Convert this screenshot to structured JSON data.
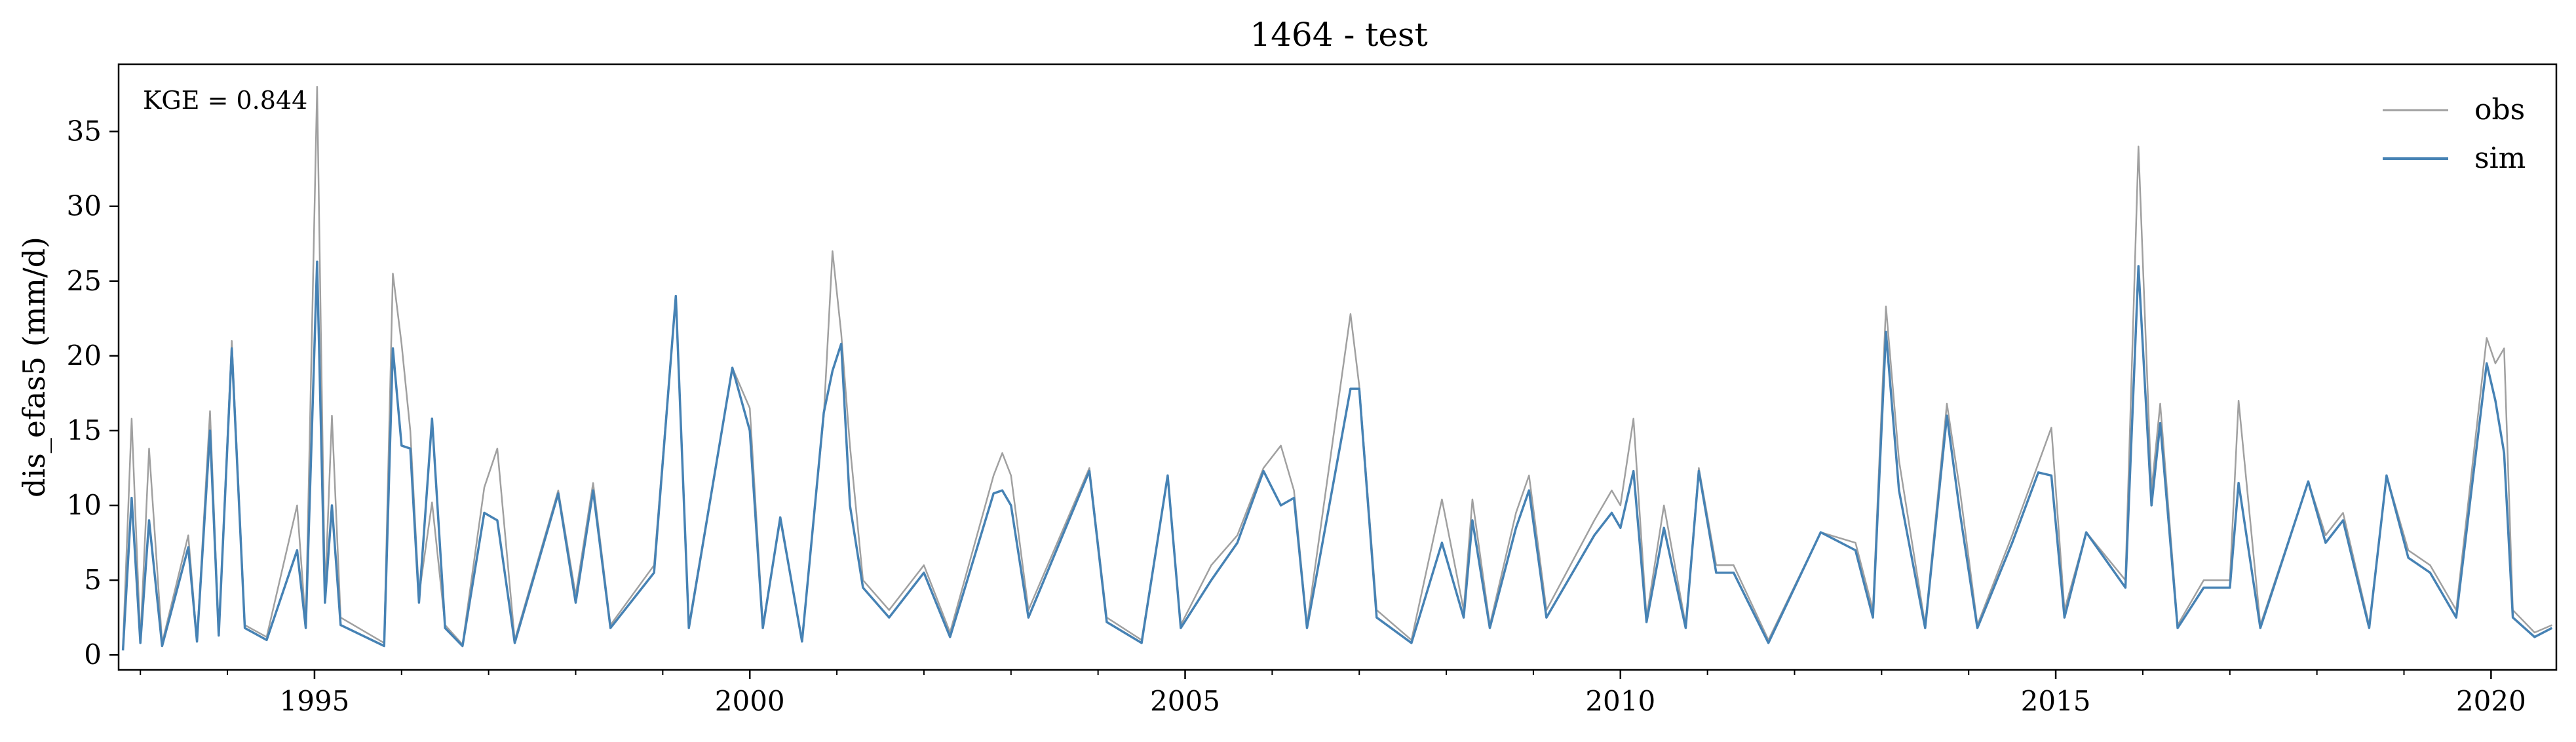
{
  "chart_data": {
    "type": "line",
    "title": "1464 - test",
    "ylabel": "dis_efas5 (mm/d)",
    "xlabel": "",
    "xlim": [
      1992.75,
      2020.75
    ],
    "ylim": [
      -1,
      39.5
    ],
    "xticks": [
      {
        "value": 1995,
        "label": "1995"
      },
      {
        "value": 2000,
        "label": "2000"
      },
      {
        "value": 2005,
        "label": "2005"
      },
      {
        "value": 2010,
        "label": "2010"
      },
      {
        "value": 2015,
        "label": "2015"
      },
      {
        "value": 2020,
        "label": "2020"
      }
    ],
    "yticks": [
      {
        "value": 0,
        "label": "0"
      },
      {
        "value": 5,
        "label": "5"
      },
      {
        "value": 10,
        "label": "10"
      },
      {
        "value": 15,
        "label": "15"
      },
      {
        "value": 20,
        "label": "20"
      },
      {
        "value": 25,
        "label": "25"
      },
      {
        "value": 30,
        "label": "30"
      },
      {
        "value": 35,
        "label": "35"
      }
    ],
    "grid": false,
    "legend": "upper right",
    "annotation": "KGE = 0.844",
    "series": [
      {
        "name": "obs",
        "color": "#a0a0a0",
        "points": [
          [
            1992.8,
            0.5
          ],
          [
            1992.9,
            15.8
          ],
          [
            1993.0,
            1.0
          ],
          [
            1993.1,
            13.8
          ],
          [
            1993.25,
            0.8
          ],
          [
            1993.55,
            8.0
          ],
          [
            1993.65,
            1.0
          ],
          [
            1993.8,
            16.3
          ],
          [
            1993.9,
            1.5
          ],
          [
            1994.05,
            21.0
          ],
          [
            1994.2,
            2.0
          ],
          [
            1994.45,
            1.2
          ],
          [
            1994.8,
            10.0
          ],
          [
            1994.9,
            2.0
          ],
          [
            1995.03,
            38.0
          ],
          [
            1995.12,
            4.0
          ],
          [
            1995.2,
            16.0
          ],
          [
            1995.3,
            2.5
          ],
          [
            1995.8,
            0.8
          ],
          [
            1995.9,
            25.5
          ],
          [
            1996.0,
            20.8
          ],
          [
            1996.1,
            15.0
          ],
          [
            1996.2,
            4.0
          ],
          [
            1996.35,
            10.2
          ],
          [
            1996.5,
            2.0
          ],
          [
            1996.7,
            0.7
          ],
          [
            1996.95,
            11.2
          ],
          [
            1997.1,
            13.8
          ],
          [
            1997.3,
            1.0
          ],
          [
            1997.8,
            11.0
          ],
          [
            1998.0,
            4.0
          ],
          [
            1998.2,
            11.5
          ],
          [
            1998.4,
            2.0
          ],
          [
            1998.9,
            6.0
          ],
          [
            1999.15,
            24.0
          ],
          [
            1999.3,
            2.0
          ],
          [
            1999.8,
            19.2
          ],
          [
            2000.0,
            16.5
          ],
          [
            2000.15,
            2.0
          ],
          [
            2000.35,
            9.0
          ],
          [
            2000.6,
            1.0
          ],
          [
            2000.85,
            16.0
          ],
          [
            2000.95,
            27.0
          ],
          [
            2001.05,
            21.5
          ],
          [
            2001.15,
            14.0
          ],
          [
            2001.3,
            5.0
          ],
          [
            2001.6,
            3.0
          ],
          [
            2002.0,
            6.0
          ],
          [
            2002.3,
            1.5
          ],
          [
            2002.8,
            12.0
          ],
          [
            2002.9,
            13.5
          ],
          [
            2003.0,
            12.0
          ],
          [
            2003.2,
            3.0
          ],
          [
            2003.9,
            12.5
          ],
          [
            2004.1,
            2.5
          ],
          [
            2004.5,
            1.0
          ],
          [
            2004.8,
            12.0
          ],
          [
            2004.95,
            2.0
          ],
          [
            2005.3,
            6.0
          ],
          [
            2005.6,
            8.0
          ],
          [
            2005.9,
            12.5
          ],
          [
            2006.1,
            14.0
          ],
          [
            2006.25,
            11.0
          ],
          [
            2006.4,
            2.0
          ],
          [
            2006.9,
            22.8
          ],
          [
            2007.0,
            18.0
          ],
          [
            2007.2,
            3.0
          ],
          [
            2007.6,
            1.0
          ],
          [
            2007.95,
            10.4
          ],
          [
            2008.2,
            3.0
          ],
          [
            2008.3,
            10.4
          ],
          [
            2008.5,
            2.0
          ],
          [
            2008.8,
            9.5
          ],
          [
            2008.95,
            12.0
          ],
          [
            2009.15,
            3.0
          ],
          [
            2009.7,
            9.0
          ],
          [
            2009.9,
            11.0
          ],
          [
            2010.0,
            10.0
          ],
          [
            2010.15,
            15.8
          ],
          [
            2010.3,
            2.5
          ],
          [
            2010.5,
            10.0
          ],
          [
            2010.75,
            2.0
          ],
          [
            2010.9,
            12.5
          ],
          [
            2011.1,
            6.0
          ],
          [
            2011.3,
            6.0
          ],
          [
            2011.7,
            1.0
          ],
          [
            2012.3,
            8.2
          ],
          [
            2012.7,
            7.5
          ],
          [
            2012.9,
            3.0
          ],
          [
            2013.05,
            23.3
          ],
          [
            2013.2,
            13.0
          ],
          [
            2013.5,
            2.0
          ],
          [
            2013.75,
            16.8
          ],
          [
            2013.9,
            11.0
          ],
          [
            2014.1,
            2.0
          ],
          [
            2014.5,
            8.0
          ],
          [
            2014.8,
            12.8
          ],
          [
            2014.95,
            15.2
          ],
          [
            2015.1,
            3.0
          ],
          [
            2015.35,
            8.2
          ],
          [
            2015.8,
            5.0
          ],
          [
            2015.95,
            34.0
          ],
          [
            2016.1,
            11.0
          ],
          [
            2016.2,
            16.8
          ],
          [
            2016.4,
            2.0
          ],
          [
            2016.7,
            5.0
          ],
          [
            2017.0,
            5.0
          ],
          [
            2017.1,
            17.0
          ],
          [
            2017.35,
            2.0
          ],
          [
            2017.9,
            11.6
          ],
          [
            2018.1,
            8.0
          ],
          [
            2018.3,
            9.5
          ],
          [
            2018.6,
            2.0
          ],
          [
            2018.8,
            12.0
          ],
          [
            2019.05,
            7.0
          ],
          [
            2019.3,
            6.0
          ],
          [
            2019.6,
            3.0
          ],
          [
            2019.95,
            21.2
          ],
          [
            2020.05,
            19.5
          ],
          [
            2020.15,
            20.5
          ],
          [
            2020.25,
            3.0
          ],
          [
            2020.5,
            1.5
          ],
          [
            2020.7,
            2.0
          ]
        ]
      },
      {
        "name": "sim",
        "color": "#4682b4",
        "points": [
          [
            1992.8,
            0.3
          ],
          [
            1992.9,
            10.5
          ],
          [
            1993.0,
            0.8
          ],
          [
            1993.1,
            9.0
          ],
          [
            1993.25,
            0.6
          ],
          [
            1993.55,
            7.2
          ],
          [
            1993.65,
            0.9
          ],
          [
            1993.8,
            15.0
          ],
          [
            1993.9,
            1.3
          ],
          [
            1994.05,
            20.5
          ],
          [
            1994.2,
            1.8
          ],
          [
            1994.45,
            1.0
          ],
          [
            1994.8,
            7.0
          ],
          [
            1994.9,
            1.8
          ],
          [
            1995.03,
            26.3
          ],
          [
            1995.12,
            3.5
          ],
          [
            1995.2,
            10.0
          ],
          [
            1995.3,
            2.0
          ],
          [
            1995.8,
            0.6
          ],
          [
            1995.9,
            20.5
          ],
          [
            1996.0,
            14.0
          ],
          [
            1996.1,
            13.8
          ],
          [
            1996.2,
            3.5
          ],
          [
            1996.35,
            15.8
          ],
          [
            1996.5,
            1.8
          ],
          [
            1996.7,
            0.6
          ],
          [
            1996.95,
            9.5
          ],
          [
            1997.1,
            9.0
          ],
          [
            1997.3,
            0.8
          ],
          [
            1997.8,
            10.8
          ],
          [
            1998.0,
            3.5
          ],
          [
            1998.2,
            11.0
          ],
          [
            1998.4,
            1.8
          ],
          [
            1998.9,
            5.5
          ],
          [
            1999.15,
            24.0
          ],
          [
            1999.3,
            1.8
          ],
          [
            1999.8,
            19.2
          ],
          [
            2000.0,
            15.0
          ],
          [
            2000.15,
            1.8
          ],
          [
            2000.35,
            9.2
          ],
          [
            2000.6,
            0.9
          ],
          [
            2000.85,
            16.2
          ],
          [
            2000.95,
            19.0
          ],
          [
            2001.05,
            20.8
          ],
          [
            2001.15,
            10.0
          ],
          [
            2001.3,
            4.5
          ],
          [
            2001.6,
            2.5
          ],
          [
            2002.0,
            5.5
          ],
          [
            2002.3,
            1.2
          ],
          [
            2002.8,
            10.8
          ],
          [
            2002.9,
            11.0
          ],
          [
            2003.0,
            10.0
          ],
          [
            2003.2,
            2.5
          ],
          [
            2003.9,
            12.3
          ],
          [
            2004.1,
            2.2
          ],
          [
            2004.5,
            0.8
          ],
          [
            2004.8,
            12.0
          ],
          [
            2004.95,
            1.8
          ],
          [
            2005.3,
            5.0
          ],
          [
            2005.6,
            7.5
          ],
          [
            2005.9,
            12.3
          ],
          [
            2006.1,
            10.0
          ],
          [
            2006.25,
            10.5
          ],
          [
            2006.4,
            1.8
          ],
          [
            2006.9,
            17.8
          ],
          [
            2007.0,
            17.8
          ],
          [
            2007.2,
            2.5
          ],
          [
            2007.6,
            0.8
          ],
          [
            2007.95,
            7.5
          ],
          [
            2008.2,
            2.5
          ],
          [
            2008.3,
            9.0
          ],
          [
            2008.5,
            1.8
          ],
          [
            2008.8,
            8.5
          ],
          [
            2008.95,
            11.0
          ],
          [
            2009.15,
            2.5
          ],
          [
            2009.7,
            8.0
          ],
          [
            2009.9,
            9.5
          ],
          [
            2010.0,
            8.5
          ],
          [
            2010.15,
            12.3
          ],
          [
            2010.3,
            2.2
          ],
          [
            2010.5,
            8.5
          ],
          [
            2010.75,
            1.8
          ],
          [
            2010.9,
            12.3
          ],
          [
            2011.1,
            5.5
          ],
          [
            2011.3,
            5.5
          ],
          [
            2011.7,
            0.8
          ],
          [
            2012.3,
            8.2
          ],
          [
            2012.7,
            7.0
          ],
          [
            2012.9,
            2.5
          ],
          [
            2013.05,
            21.6
          ],
          [
            2013.2,
            11.0
          ],
          [
            2013.5,
            1.8
          ],
          [
            2013.75,
            16.0
          ],
          [
            2013.9,
            9.5
          ],
          [
            2014.1,
            1.8
          ],
          [
            2014.5,
            7.5
          ],
          [
            2014.8,
            12.2
          ],
          [
            2014.95,
            12.0
          ],
          [
            2015.1,
            2.5
          ],
          [
            2015.35,
            8.2
          ],
          [
            2015.8,
            4.5
          ],
          [
            2015.95,
            26.0
          ],
          [
            2016.1,
            10.0
          ],
          [
            2016.2,
            15.5
          ],
          [
            2016.4,
            1.8
          ],
          [
            2016.7,
            4.5
          ],
          [
            2017.0,
            4.5
          ],
          [
            2017.1,
            11.5
          ],
          [
            2017.35,
            1.8
          ],
          [
            2017.9,
            11.6
          ],
          [
            2018.1,
            7.5
          ],
          [
            2018.3,
            9.0
          ],
          [
            2018.6,
            1.8
          ],
          [
            2018.8,
            12.0
          ],
          [
            2019.05,
            6.5
          ],
          [
            2019.3,
            5.5
          ],
          [
            2019.6,
            2.5
          ],
          [
            2019.95,
            19.5
          ],
          [
            2020.05,
            17.0
          ],
          [
            2020.15,
            13.5
          ],
          [
            2020.25,
            2.5
          ],
          [
            2020.5,
            1.2
          ],
          [
            2020.7,
            1.8
          ]
        ]
      }
    ]
  }
}
